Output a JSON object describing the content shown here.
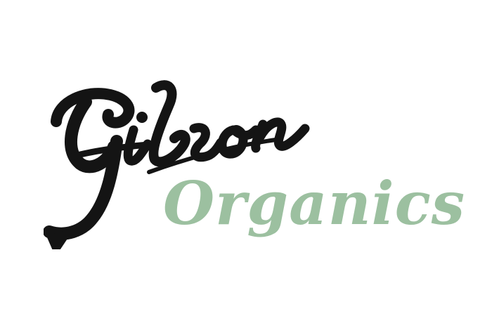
{
  "logo": {
    "primary_text": "Gibson",
    "secondary_text": "Organics",
    "primary_color": "#141414",
    "secondary_color": "#9cc0a0",
    "background_color": "#ffffff"
  }
}
